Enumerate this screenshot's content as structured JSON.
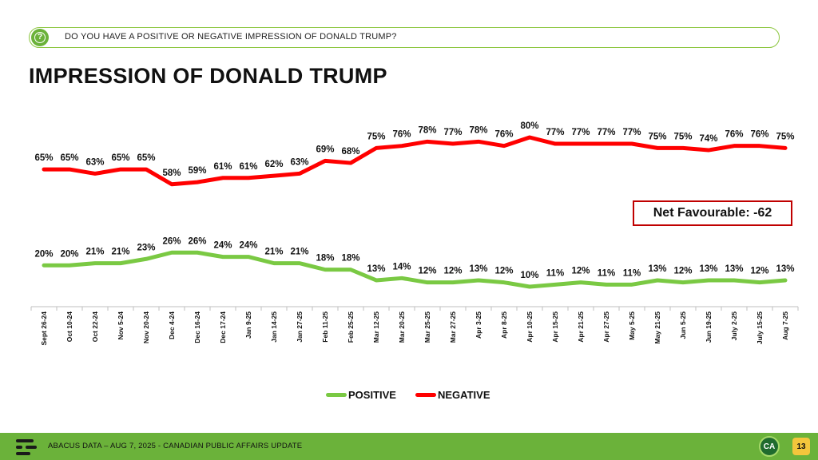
{
  "question": {
    "text": "DO YOU HAVE A POSITIVE OR NEGATIVE IMPRESSION OF DONALD TRUMP?",
    "icon": "question-icon"
  },
  "title": "IMPRESSION OF DONALD TRUMP",
  "net_favourable": "Net Favourable: -62",
  "chart_data": {
    "type": "line",
    "title": "IMPRESSION OF DONALD TRUMP",
    "xlabel": "",
    "ylabel": "",
    "ylim": [
      0,
      100
    ],
    "grid": false,
    "legend_position": "bottom",
    "categories": [
      "Sept 26-24",
      "Oct 10-24",
      "Oct 22-24",
      "Nov 5-24",
      "Nov 20-24",
      "Dec 4-24",
      "Dec 16-24",
      "Dec 17-24",
      "Jan 9-25",
      "Jan 14-25",
      "Jan 27-25",
      "Feb 11-25",
      "Feb 25-25",
      "Mar 12-25",
      "Mar 20-25",
      "Mar 25-25",
      "Mar 27-25",
      "Apr 3-25",
      "Apr 8-25",
      "Apr 10-25",
      "Apr 15-25",
      "Apr 21-25",
      "Apr 27-25",
      "May 5-25",
      "May 21-25",
      "Jun 5-25",
      "Jun 19-25",
      "July 2-25",
      "July 15-25",
      "Aug 7-25"
    ],
    "series": [
      {
        "name": "POSITIVE",
        "color": "#7ac943",
        "values": [
          20,
          20,
          21,
          21,
          23,
          26,
          26,
          24,
          24,
          21,
          21,
          18,
          18,
          13,
          14,
          12,
          12,
          13,
          12,
          10,
          11,
          12,
          11,
          11,
          13,
          12,
          13,
          13,
          12,
          13
        ]
      },
      {
        "name": "NEGATIVE",
        "color": "#ff0000",
        "values": [
          65,
          65,
          63,
          65,
          65,
          58,
          59,
          61,
          61,
          62,
          63,
          69,
          68,
          75,
          76,
          78,
          77,
          78,
          76,
          80,
          77,
          77,
          77,
          77,
          75,
          75,
          74,
          76,
          76,
          75
        ]
      }
    ]
  },
  "footer": {
    "text": "ABACUS DATA – AUG 7, 2025 - CANADIAN PUBLIC AFFAIRS UPDATE",
    "logo": "abacus-logo-icon",
    "brand_mark": "CA",
    "page_number": "13"
  }
}
